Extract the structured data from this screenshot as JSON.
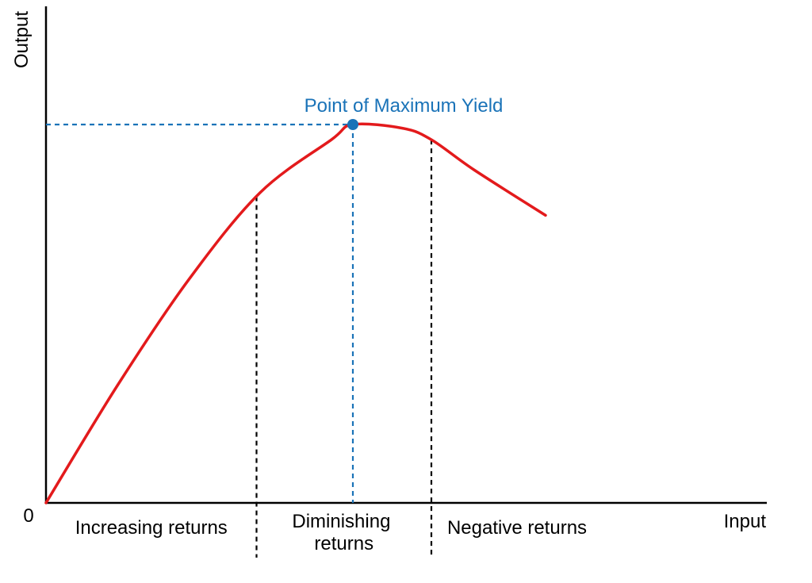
{
  "chart_data": {
    "type": "line",
    "title": "",
    "xlabel": "Input",
    "ylabel": "Output",
    "origin_label": "0",
    "xlim": [
      0,
      100
    ],
    "ylim": [
      0,
      100
    ],
    "grid": false,
    "legend": "none",
    "series": [
      {
        "color": "#e31a1c",
        "x": [
          0,
          10,
          20,
          30,
          40,
          43,
          50,
          54,
          60,
          70
        ],
        "y": [
          0,
          31,
          59,
          82,
          96,
          100,
          99,
          96,
          88,
          76
        ]
      }
    ],
    "boundaries": [
      {
        "x": 29.5,
        "y": 81,
        "color": "#000000",
        "style": "dashed"
      },
      {
        "x": 54,
        "y": 96,
        "color": "#000000",
        "style": "dashed"
      }
    ],
    "max_point": {
      "x": 43,
      "y": 100,
      "label": "Point of Maximum Yield",
      "color": "#1a73b8"
    },
    "regions": [
      {
        "label_lines": [
          "Increasing returns"
        ],
        "x_center": 14.75
      },
      {
        "label_lines": [
          "Diminishing",
          "returns"
        ],
        "x_center": 41.75
      },
      {
        "label_lines": [
          "Negative returns"
        ],
        "x_center": 66
      }
    ]
  }
}
